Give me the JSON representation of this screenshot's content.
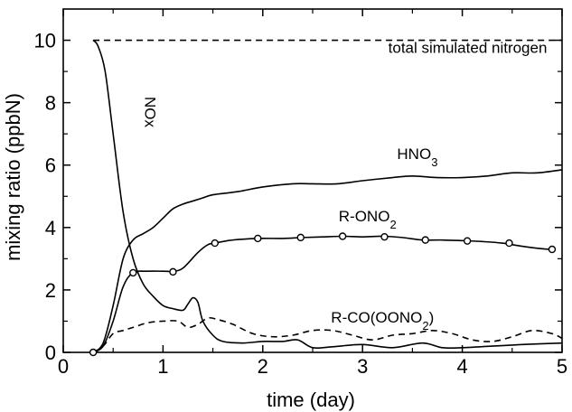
{
  "chart_data": {
    "type": "line",
    "xlabel": "time (day)",
    "ylabel": "mixing ratio (ppbN)",
    "xlim": [
      0,
      5
    ],
    "ylim": [
      0,
      11
    ],
    "xticks": [
      0,
      1,
      2,
      3,
      4,
      5
    ],
    "yticks": [
      0,
      2,
      4,
      6,
      8,
      10
    ],
    "grid": false,
    "legend": "none",
    "series": [
      {
        "name": "total simulated nitrogen",
        "style": "dashed",
        "color": "#000000",
        "x": [
          0.3,
          0.5,
          1,
          1.5,
          2,
          2.5,
          3,
          3.5,
          4,
          4.5,
          5
        ],
        "y": [
          10,
          10,
          10,
          10,
          10,
          10,
          10,
          10,
          10,
          10,
          10
        ]
      },
      {
        "name": "NOx",
        "style": "solid",
        "color": "#000000",
        "x": [
          0.3,
          0.35,
          0.42,
          0.5,
          0.6,
          0.7,
          0.8,
          0.9,
          1.0,
          1.1,
          1.2,
          1.25,
          1.3,
          1.35,
          1.4,
          1.5,
          1.6,
          1.8,
          2.0,
          2.2,
          2.35,
          2.5,
          2.7,
          3.0,
          3.3,
          3.6,
          3.8,
          4.0,
          4.3,
          4.6,
          5.0
        ],
        "y": [
          10,
          9.8,
          9.0,
          7.0,
          4.5,
          3.0,
          2.2,
          1.8,
          1.5,
          1.4,
          1.35,
          1.55,
          1.75,
          1.6,
          1.0,
          0.55,
          0.35,
          0.3,
          0.35,
          0.35,
          0.4,
          0.15,
          0.18,
          0.25,
          0.15,
          0.3,
          0.15,
          0.15,
          0.2,
          0.25,
          0.3
        ]
      },
      {
        "name": "HNO3",
        "style": "solid",
        "color": "#000000",
        "x": [
          0.3,
          0.4,
          0.5,
          0.6,
          0.7,
          0.8,
          0.9,
          1.0,
          1.1,
          1.2,
          1.3,
          1.4,
          1.5,
          1.75,
          2.0,
          2.3,
          2.5,
          2.75,
          3.0,
          3.3,
          3.5,
          3.75,
          4.0,
          4.25,
          4.5,
          4.75,
          5.0
        ],
        "y": [
          0,
          0.3,
          1.5,
          3.0,
          3.6,
          3.8,
          4.0,
          4.3,
          4.6,
          4.75,
          4.85,
          4.95,
          5.05,
          5.15,
          5.3,
          5.4,
          5.4,
          5.4,
          5.5,
          5.6,
          5.65,
          5.6,
          5.6,
          5.65,
          5.75,
          5.75,
          5.85
        ]
      },
      {
        "name": "R-ONO2",
        "style": "solid-circles",
        "color": "#000000",
        "x": [
          0.3,
          0.4,
          0.5,
          0.6,
          0.7,
          0.85,
          1.0,
          1.1,
          1.2,
          1.35,
          1.45,
          1.52,
          1.7,
          1.95,
          2.2,
          2.4,
          2.6,
          2.8,
          3.0,
          3.2,
          3.4,
          3.6,
          3.8,
          4.0,
          4.2,
          4.4,
          4.6,
          4.8,
          4.9
        ],
        "y": [
          0,
          0.2,
          1.0,
          2.1,
          2.55,
          2.6,
          2.6,
          2.6,
          2.7,
          3.2,
          3.45,
          3.5,
          3.6,
          3.65,
          3.65,
          3.68,
          3.7,
          3.72,
          3.7,
          3.72,
          3.68,
          3.6,
          3.6,
          3.58,
          3.55,
          3.5,
          3.4,
          3.32,
          3.3
        ]
      },
      {
        "name": "R-CO(OONO2)",
        "style": "dashed",
        "color": "#000000",
        "x": [
          0.3,
          0.4,
          0.5,
          0.6,
          0.7,
          0.85,
          1.0,
          1.15,
          1.25,
          1.35,
          1.45,
          1.55,
          1.7,
          1.9,
          2.1,
          2.3,
          2.5,
          2.7,
          2.9,
          3.1,
          3.3,
          3.5,
          3.7,
          3.9,
          4.1,
          4.3,
          4.5,
          4.7,
          4.9,
          5.0
        ],
        "y": [
          0,
          0.2,
          0.6,
          0.7,
          0.8,
          0.95,
          1.0,
          1.0,
          0.8,
          0.9,
          1.1,
          1.05,
          0.9,
          0.6,
          0.5,
          0.55,
          0.7,
          0.7,
          0.55,
          0.4,
          0.55,
          0.6,
          0.7,
          0.6,
          0.4,
          0.35,
          0.5,
          0.7,
          0.6,
          0.45
        ]
      }
    ],
    "markers": {
      "series": "R-ONO2",
      "x": [
        0.3,
        0.7,
        1.1,
        1.52,
        1.95,
        2.38,
        2.8,
        3.22,
        3.63,
        4.05,
        4.47,
        4.9
      ],
      "y": [
        0,
        2.55,
        2.58,
        3.5,
        3.65,
        3.68,
        3.72,
        3.7,
        3.6,
        3.57,
        3.5,
        3.3
      ]
    },
    "annotations": [
      {
        "id": "total",
        "text": "total simulated nitrogen",
        "x": 4.85,
        "y": 9.6,
        "anchor": "end",
        "rotate": false
      },
      {
        "id": "hno3",
        "text": "HNO3",
        "x": 3.55,
        "y": 6.2,
        "anchor": "middle",
        "rotate": false
      },
      {
        "id": "rono2",
        "text": "R-ONO2",
        "x": 3.05,
        "y": 4.2,
        "anchor": "middle",
        "rotate": false
      },
      {
        "id": "rcooono2",
        "text": "R-CO(OONO2)",
        "x": 3.2,
        "y": 0.95,
        "anchor": "middle",
        "rotate": false
      },
      {
        "id": "nox",
        "text": "NOx",
        "x": 0.82,
        "y": 7.7,
        "anchor": "middle",
        "rotate": true
      }
    ]
  }
}
